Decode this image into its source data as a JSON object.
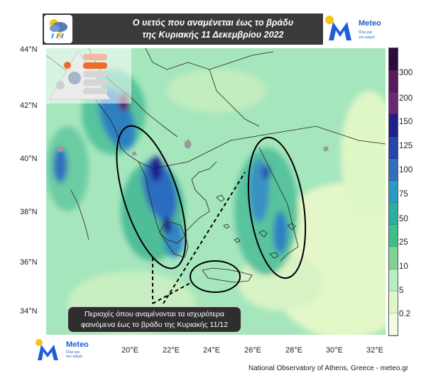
{
  "title": {
    "line1": "Ο υετός που αναμένεται έως το βράδυ",
    "line2": "της Κυριακής 11 Δεκεμβρίου 2022"
  },
  "logo": {
    "word": "Meteo",
    "tagline_1": "Όλα για",
    "tagline_2": "τον καιρό"
  },
  "map": {
    "lat_labels": [
      "44°N",
      "42°N",
      "40°N",
      "38°N",
      "36°N",
      "34°N"
    ],
    "lon_labels": [
      "20°E",
      "22°E",
      "24°E",
      "26°E",
      "28°E",
      "30°E",
      "32°E"
    ]
  },
  "colorbar": {
    "labels": [
      "300",
      "200",
      "150",
      "125",
      "100",
      "75",
      "50",
      "25",
      "10",
      "5",
      "0.2"
    ],
    "colors": [
      "#2f0a3c",
      "#5b1a5e",
      "#6a2a73",
      "#1d1f8c",
      "#2546ad",
      "#2f6fc0",
      "#2a9ac0",
      "#2ab09e",
      "#3fbf86",
      "#7fd58f",
      "#b7ecc4",
      "#dff7c8",
      "#f2fbe6"
    ]
  },
  "annotation": {
    "line1": "Περιοχές όπου αναμένονται τα ισχυρότερα",
    "line2": "φαινόμενα έως το βράδυ της Κυριακής 11/12"
  },
  "credit": "National Observatory of Athens, Greece - meteo.gr"
}
